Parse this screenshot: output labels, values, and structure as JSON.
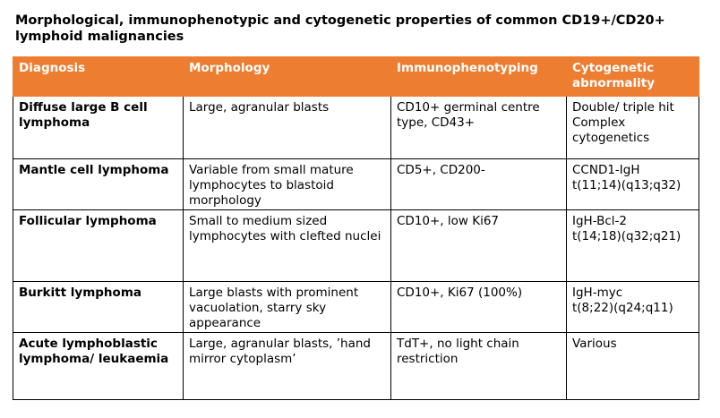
{
  "title": "Morphological,  immunophenotypic and cytogenetic properties of common CD19+/CD20+ lymphoid malignancies",
  "colors": {
    "header_bg": "#ED7D31",
    "header_text": "#FFFFFF"
  },
  "table": {
    "headers": [
      "Diagnosis",
      "Morphology",
      "Immunophenotyping",
      "Cytogenetic abnormality"
    ],
    "rows": [
      {
        "diagnosis": "Diffuse large B cell lymphoma",
        "morphology": "Large, agranular blasts",
        "immunophenotyping": "CD10+ germinal centre type, CD43+",
        "cytogenetic": [
          "Double/ triple hit",
          "Complex cytogenetics"
        ]
      },
      {
        "diagnosis": "Mantle cell lymphoma",
        "morphology": "Variable from small mature lymphocytes to blastoid morphology",
        "immunophenotyping": "CD5+, CD200-",
        "cytogenetic": [
          "CCND1-IgH",
          "t(11;14)(q13;q32)"
        ]
      },
      {
        "diagnosis": "Follicular  lymphoma",
        "morphology": "Small to medium sized lymphocytes with clefted nuclei",
        "immunophenotyping": "CD10+, low Ki67",
        "cytogenetic": [
          "IgH-Bcl-2",
          "t(14;18)(q32;q21)"
        ]
      },
      {
        "diagnosis": "Burkitt lymphoma",
        "morphology": "Large blasts with prominent vacuolation, starry sky appearance",
        "immunophenotyping": "CD10+, Ki67 (100%)",
        "cytogenetic": [
          "IgH-myc",
          "t(8;22)(q24;q11)"
        ]
      },
      {
        "diagnosis": "Acute lymphoblastic lymphoma/  leukaemia",
        "morphology": "Large, agranular blasts, ’hand mirror cytoplasm’",
        "immunophenotyping": "TdT+, no light chain restriction",
        "cytogenetic": [
          "Various"
        ]
      }
    ]
  }
}
